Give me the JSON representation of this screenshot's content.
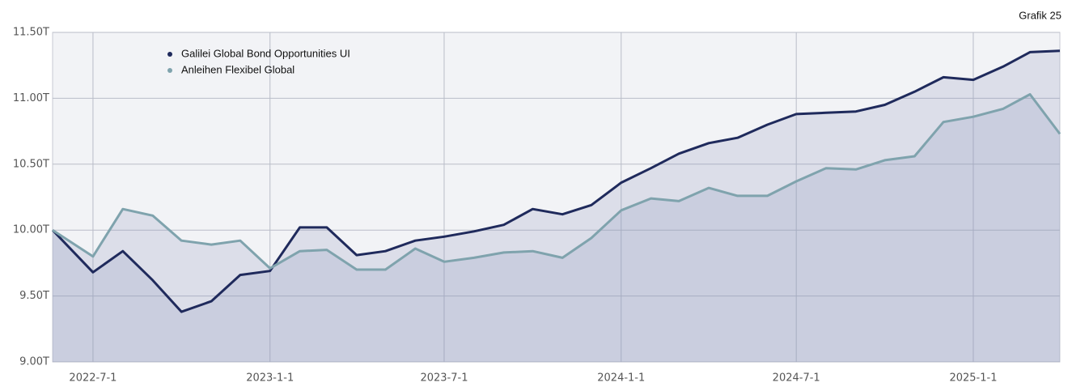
{
  "chart_data": {
    "type": "line",
    "subtitle": "Grafik 25",
    "x": [
      "2022-05-20",
      "2022-07-01",
      "2022-08-01",
      "2022-09-01",
      "2022-10-01",
      "2022-11-01",
      "2022-12-01",
      "2023-01-01",
      "2023-02-01",
      "2023-03-01",
      "2023-04-01",
      "2023-05-01",
      "2023-06-01",
      "2023-07-01",
      "2023-08-01",
      "2023-09-01",
      "2023-10-01",
      "2023-11-01",
      "2023-12-01",
      "2024-01-01",
      "2024-02-01",
      "2024-03-01",
      "2024-04-01",
      "2024-05-01",
      "2024-06-01",
      "2024-07-01",
      "2024-08-01",
      "2024-09-01",
      "2024-10-01",
      "2024-11-01",
      "2024-12-01",
      "2025-01-01",
      "2025-02-01",
      "2025-03-01",
      "2025-04-01"
    ],
    "series": [
      {
        "name": "Galilei Global Bond Opportunities UI",
        "color": "#1f2a5c",
        "values": [
          10.0,
          9.68,
          9.84,
          9.62,
          9.38,
          9.46,
          9.66,
          9.69,
          10.02,
          10.02,
          9.81,
          9.84,
          9.92,
          9.95,
          9.99,
          10.04,
          10.16,
          10.12,
          10.19,
          10.36,
          10.47,
          10.58,
          10.66,
          10.7,
          10.8,
          10.88,
          10.89,
          10.9,
          10.95,
          11.05,
          11.16,
          11.14,
          11.24,
          11.35,
          11.36
        ]
      },
      {
        "name": "Anleihen Flexibel Global",
        "color": "#7fa3ad",
        "values": [
          10.0,
          9.8,
          10.16,
          10.11,
          9.92,
          9.89,
          9.92,
          9.71,
          9.84,
          9.85,
          9.7,
          9.7,
          9.86,
          9.76,
          9.79,
          9.83,
          9.84,
          9.79,
          9.94,
          10.15,
          10.24,
          10.22,
          10.32,
          10.26,
          10.26,
          10.37,
          10.47,
          10.46,
          10.53,
          10.56,
          10.82,
          10.86,
          10.92,
          11.03,
          10.73
        ]
      }
    ],
    "xlim": [
      "2022-05-20",
      "2025-04-01"
    ],
    "xticks": [
      {
        "value": "2022-07-01",
        "label": "2022-7-1"
      },
      {
        "value": "2023-01-01",
        "label": "2023-1-1"
      },
      {
        "value": "2023-07-01",
        "label": "2023-7-1"
      },
      {
        "value": "2024-01-01",
        "label": "2024-1-1"
      },
      {
        "value": "2024-07-01",
        "label": "2024-7-1"
      },
      {
        "value": "2025-01-01",
        "label": "2025-1-1"
      }
    ],
    "ylim": [
      9,
      11.5
    ],
    "yticks": [
      {
        "value": 9,
        "label": "9.00T"
      },
      {
        "value": 9.5,
        "label": "9.50T"
      },
      {
        "value": 10,
        "label": "10.00T"
      },
      {
        "value": 10.5,
        "label": "10.50T"
      },
      {
        "value": 11,
        "label": "11.00T"
      },
      {
        "value": 11.5,
        "label": "11.50T"
      }
    ],
    "grid": true,
    "legend": "top-left"
  }
}
